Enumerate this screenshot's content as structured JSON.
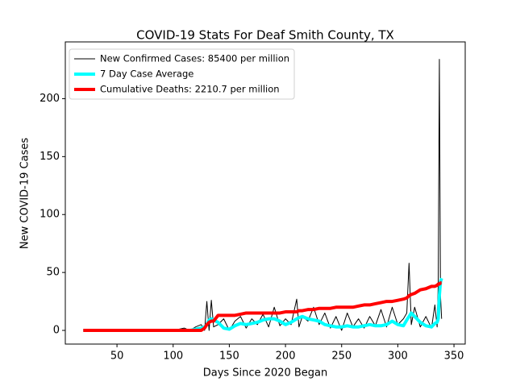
{
  "chart_data": {
    "type": "line",
    "title": "COVID-19 Stats For Deaf Smith County, TX",
    "x_label": "Days Since 2020 Began",
    "y_label": "New COVID-19 Cases",
    "x": [
      20,
      40,
      60,
      80,
      100,
      110,
      115,
      120,
      125,
      128,
      130,
      132,
      134,
      136,
      140,
      145,
      150,
      155,
      160,
      165,
      170,
      175,
      180,
      185,
      190,
      195,
      200,
      205,
      210,
      212,
      215,
      220,
      225,
      230,
      235,
      240,
      245,
      250,
      255,
      260,
      265,
      270,
      275,
      280,
      285,
      290,
      295,
      300,
      305,
      308,
      310,
      312,
      315,
      320,
      325,
      330,
      333,
      335,
      336,
      337,
      338,
      339
    ],
    "series": [
      {
        "name": "New Confirmed Cases: 85400 per million",
        "color": "#000000",
        "width": 1,
        "values": [
          0,
          0,
          0,
          0,
          0,
          2,
          0,
          3,
          5,
          0,
          25,
          0,
          26,
          3,
          5,
          10,
          0,
          8,
          12,
          2,
          10,
          5,
          14,
          3,
          20,
          4,
          10,
          5,
          27,
          3,
          12,
          8,
          20,
          5,
          15,
          2,
          12,
          0,
          15,
          3,
          10,
          2,
          12,
          4,
          18,
          3,
          20,
          5,
          10,
          15,
          58,
          5,
          20,
          3,
          12,
          2,
          22,
          3,
          40,
          234,
          30,
          10
        ]
      },
      {
        "name": "7 Day Case Average",
        "color": "#00ffff",
        "width": 4,
        "values": [
          0,
          0,
          0,
          0,
          0,
          0,
          0,
          1,
          2,
          3,
          5,
          9,
          10,
          9,
          7,
          2,
          1,
          4,
          6,
          5,
          6,
          7,
          9,
          10,
          10,
          8,
          5,
          7,
          10,
          11,
          12,
          10,
          9,
          8,
          5,
          4,
          3,
          3,
          4,
          3,
          3,
          4,
          5,
          4,
          4,
          5,
          8,
          5,
          4,
          9,
          12,
          15,
          12,
          7,
          4,
          3,
          6,
          7,
          10,
          30,
          42,
          45
        ]
      },
      {
        "name": "Cumulative Deaths: 2210.7 per million",
        "color": "#ff0000",
        "width": 4,
        "values": [
          0,
          0,
          0,
          0,
          0,
          0,
          0,
          0,
          0,
          2,
          5,
          7,
          8,
          8,
          13,
          13,
          13,
          13,
          14,
          15,
          15,
          15,
          15,
          15,
          15,
          15,
          16,
          16,
          16,
          17,
          17,
          18,
          18,
          19,
          19,
          19,
          20,
          20,
          20,
          20,
          21,
          22,
          22,
          23,
          24,
          25,
          25,
          26,
          27,
          28,
          30,
          31,
          32,
          35,
          36,
          38,
          38,
          39,
          40,
          40,
          41,
          41
        ]
      }
    ],
    "xlim": [
      4,
      360
    ],
    "ylim": [
      -11.8,
      249
    ],
    "xticks": [
      50,
      100,
      150,
      200,
      250,
      300,
      350
    ],
    "yticks": [
      0,
      50,
      100,
      150,
      200
    ],
    "legend": "upper-left"
  }
}
